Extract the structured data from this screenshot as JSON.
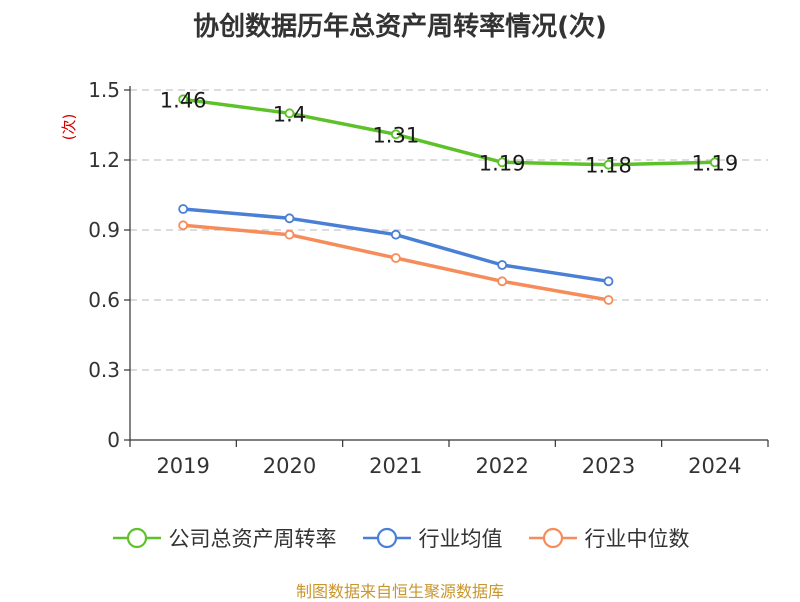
{
  "chart_data": {
    "type": "line",
    "title": "协创数据历年总资产周转率情况(次)",
    "ylabel": "(次)",
    "categories": [
      "2019",
      "2020",
      "2021",
      "2022",
      "2023",
      "2024"
    ],
    "ylim": [
      0,
      1.5
    ],
    "yticks": [
      "0",
      "0.3",
      "0.6",
      "0.9",
      "1.2",
      "1.5"
    ],
    "grid": true,
    "legend_position": "bottom",
    "series": [
      {
        "name": "公司总资产周转率",
        "color": "#5dc12a",
        "values": [
          1.46,
          1.4,
          1.31,
          1.19,
          1.18,
          1.19
        ],
        "labels": [
          "1.46",
          "1.4",
          "1.31",
          "1.19",
          "1.18",
          "1.19"
        ]
      },
      {
        "name": "行业均值",
        "color": "#4a7fd6",
        "values": [
          0.99,
          0.95,
          0.88,
          0.75,
          0.68,
          null
        ]
      },
      {
        "name": "行业中位数",
        "color": "#f58c5a",
        "values": [
          0.92,
          0.88,
          0.78,
          0.68,
          0.6,
          null
        ]
      }
    ]
  },
  "source": "制图数据来自恒生聚源数据库"
}
